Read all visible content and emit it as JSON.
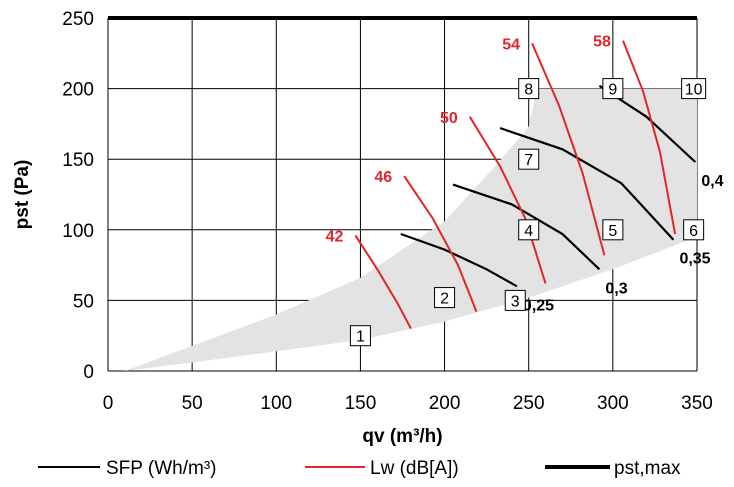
{
  "chart_data": {
    "type": "line",
    "xlabel": "qv (m³/h)",
    "ylabel": "pst (Pa)",
    "xlim": [
      0,
      350
    ],
    "ylim": [
      0,
      250
    ],
    "xticks": [
      0,
      50,
      100,
      150,
      200,
      250,
      300,
      350
    ],
    "yticks": [
      0,
      50,
      100,
      150,
      200,
      250
    ],
    "grid": true,
    "legend_position": "bottom",
    "colors": {
      "sfp": "#000000",
      "lw": "#e0262a",
      "pst_max": "#000000",
      "envelope": "#e3e3e3"
    },
    "envelope": {
      "lower": [
        [
          10,
          0
        ],
        [
          50,
          6
        ],
        [
          100,
          14
        ],
        [
          150,
          22
        ],
        [
          200,
          35
        ],
        [
          250,
          52
        ],
        [
          300,
          72
        ],
        [
          350,
          95
        ]
      ],
      "upper": [
        [
          10,
          0
        ],
        [
          100,
          40
        ],
        [
          150,
          66
        ],
        [
          200,
          106
        ],
        [
          230,
          145
        ],
        [
          250,
          173
        ],
        [
          255,
          200
        ],
        [
          350,
          200
        ]
      ]
    },
    "pst_max": {
      "name": "pst,max",
      "value": 250
    },
    "series": [
      {
        "group": "SFP (Wh/m³)",
        "name": "0,25",
        "points": [
          [
            174,
            97
          ],
          [
            200,
            86
          ],
          [
            225,
            72
          ],
          [
            243,
            60
          ]
        ]
      },
      {
        "group": "SFP (Wh/m³)",
        "name": "0,3",
        "points": [
          [
            205,
            132
          ],
          [
            240,
            118
          ],
          [
            270,
            97
          ],
          [
            292,
            72
          ]
        ]
      },
      {
        "group": "SFP (Wh/m³)",
        "name": "0,35",
        "points": [
          [
            233,
            172
          ],
          [
            270,
            157
          ],
          [
            305,
            133
          ],
          [
            336,
            93
          ]
        ]
      },
      {
        "group": "SFP (Wh/m³)",
        "name": "0,4",
        "points": [
          [
            292,
            202
          ],
          [
            320,
            180
          ],
          [
            349,
            148
          ]
        ]
      },
      {
        "group": "Lw (dB[A])",
        "name": "42",
        "points": [
          [
            147,
            96
          ],
          [
            160,
            72
          ],
          [
            172,
            48
          ],
          [
            180,
            30
          ]
        ]
      },
      {
        "group": "Lw (dB[A])",
        "name": "46",
        "points": [
          [
            176,
            138
          ],
          [
            193,
            108
          ],
          [
            208,
            75
          ],
          [
            219,
            42
          ]
        ]
      },
      {
        "group": "Lw (dB[A])",
        "name": "50",
        "points": [
          [
            215,
            180
          ],
          [
            233,
            145
          ],
          [
            248,
            108
          ],
          [
            260,
            62
          ]
        ]
      },
      {
        "group": "Lw (dB[A])",
        "name": "54",
        "points": [
          [
            252,
            232
          ],
          [
            268,
            188
          ],
          [
            282,
            140
          ],
          [
            295,
            82
          ]
        ]
      },
      {
        "group": "Lw (dB[A])",
        "name": "58",
        "points": [
          [
            306,
            234
          ],
          [
            318,
            198
          ],
          [
            328,
            155
          ],
          [
            337,
            97
          ]
        ]
      }
    ],
    "operating_points": [
      {
        "label": "1",
        "x": 150,
        "y": 25
      },
      {
        "label": "2",
        "x": 200,
        "y": 52
      },
      {
        "label": "3",
        "x": 242,
        "y": 50
      },
      {
        "label": "4",
        "x": 250,
        "y": 100
      },
      {
        "label": "5",
        "x": 300,
        "y": 100
      },
      {
        "label": "6",
        "x": 348,
        "y": 100
      },
      {
        "label": "7",
        "x": 250,
        "y": 150
      },
      {
        "label": "8",
        "x": 250,
        "y": 200
      },
      {
        "label": "9",
        "x": 300,
        "y": 200
      },
      {
        "label": "10",
        "x": 348,
        "y": 200
      }
    ],
    "legend": [
      {
        "label": "SFP (Wh/m³)",
        "kind": "sfp"
      },
      {
        "label": "Lw (dB[A])",
        "kind": "lw"
      },
      {
        "label": "pst,max",
        "kind": "pst_max"
      }
    ]
  }
}
